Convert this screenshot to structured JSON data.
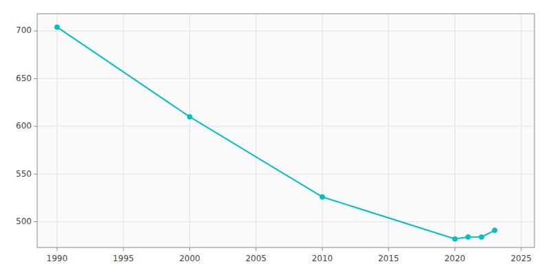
{
  "chart_data": {
    "type": "line",
    "x": [
      1990,
      2000,
      2010,
      2020,
      2021,
      2022,
      2023
    ],
    "values": [
      704,
      610,
      526,
      482,
      484,
      484,
      491
    ],
    "color": "#00C0C0",
    "marker": "circle",
    "xlim": [
      1988.5,
      2026
    ],
    "ylim": [
      473,
      718
    ],
    "xticks": [
      1990,
      1995,
      2000,
      2005,
      2010,
      2015,
      2020,
      2025
    ],
    "yticks": [
      500,
      550,
      600,
      650,
      700
    ],
    "grid": true
  }
}
